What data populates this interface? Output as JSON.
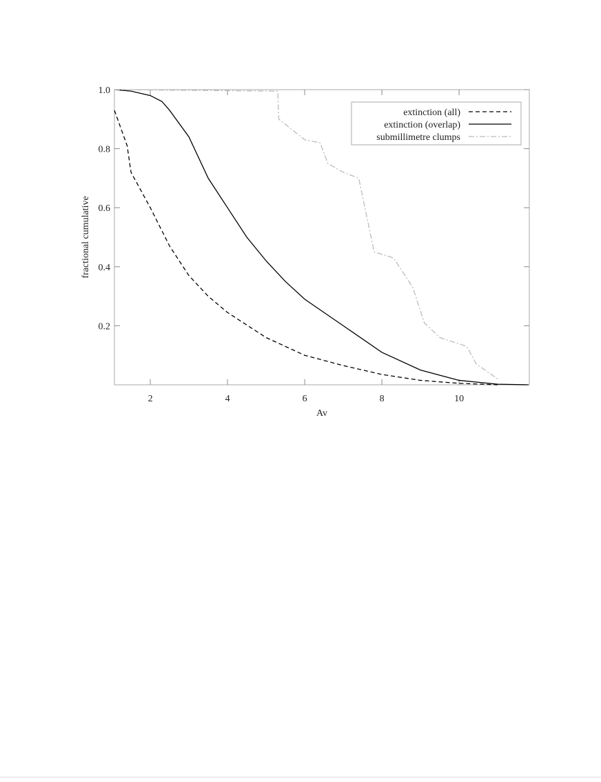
{
  "chart_data": {
    "type": "line",
    "xlabel": "Av",
    "ylabel": "fractional cumulative",
    "xlim": [
      1.07,
      11.82
    ],
    "ylim": [
      0,
      1.0
    ],
    "xticks": [
      2,
      4,
      6,
      8,
      10
    ],
    "yticks": [
      0.2,
      0.4,
      0.6,
      0.8,
      {
        "value": 1.0,
        "label": "1.0"
      }
    ],
    "legend": "upper right",
    "series": [
      {
        "name": "extinction (all)",
        "color": "#000000",
        "style": "dashed",
        "x": [
          1.07,
          1.4,
          1.5,
          2,
          2.5,
          3,
          3.5,
          4,
          5,
          6,
          7,
          8,
          9,
          10,
          11
        ],
        "values": [
          0.93,
          0.81,
          0.72,
          0.6,
          0.47,
          0.37,
          0.3,
          0.245,
          0.16,
          0.1,
          0.065,
          0.035,
          0.015,
          0.005,
          0
        ]
      },
      {
        "name": "extinction (overlap)",
        "color": "#000000",
        "style": "solid",
        "x": [
          1.07,
          1.5,
          2,
          2.3,
          2.5,
          3,
          3.5,
          4,
          4.5,
          5,
          5.5,
          6,
          7,
          8,
          9,
          10,
          11,
          11.8
        ],
        "values": [
          1.0,
          0.995,
          0.98,
          0.96,
          0.93,
          0.84,
          0.7,
          0.6,
          0.5,
          0.42,
          0.35,
          0.29,
          0.2,
          0.11,
          0.05,
          0.015,
          0.002,
          0
        ]
      },
      {
        "name": "submillimetre clumps",
        "color": "#bbbbbb",
        "style": "dashdot",
        "x": [
          1.07,
          5.3,
          5.33,
          6,
          6.4,
          6.6,
          7,
          7.4,
          7.8,
          8.3,
          8.8,
          9.1,
          9.5,
          10.2,
          10.45,
          11
        ],
        "values": [
          1.0,
          0.995,
          0.9,
          0.83,
          0.82,
          0.75,
          0.72,
          0.7,
          0.45,
          0.43,
          0.33,
          0.21,
          0.16,
          0.13,
          0.07,
          0.02
        ]
      }
    ]
  }
}
